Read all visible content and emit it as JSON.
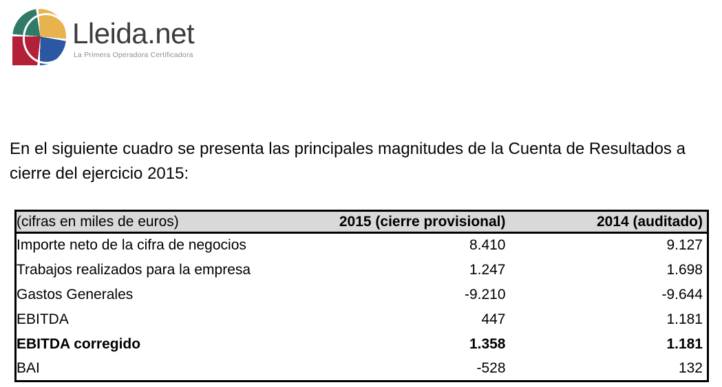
{
  "logo": {
    "name": "Lleida.net",
    "tagline": "La Primera Operadora Certificadora",
    "colors": {
      "quadrant_teal": "#2F7A68",
      "quadrant_yellow": "#E7B34C",
      "quadrant_red": "#B32038",
      "quadrant_blue": "#2B57A3",
      "name_text": "#3C3C3B",
      "tagline_text": "#8F8F8F"
    }
  },
  "intro_paragraph": "En el siguiente cuadro se presenta las principales magnitudes de la Cuenta de Resultados a cierre del ejercicio 2015:",
  "table": {
    "header_bg": "#D9D9D9",
    "header": [
      "(cifras en miles de euros)",
      "2015 (cierre provisional)",
      "2014 (auditado)"
    ],
    "rows": [
      {
        "label": "Importe neto de la cifra de negocios",
        "y2015": "8.410",
        "y2014": "9.127",
        "bold": false
      },
      {
        "label": "Trabajos realizados para la empresa",
        "y2015": "1.247",
        "y2014": "1.698",
        "bold": false
      },
      {
        "label": "Gastos Generales",
        "y2015": "-9.210",
        "y2014": "-9.644",
        "bold": false
      },
      {
        "label": "EBITDA",
        "y2015": "447",
        "y2014": "1.181",
        "bold": false
      },
      {
        "label": "EBITDA corregido",
        "y2015": "1.358",
        "y2014": "1.181",
        "bold": true
      },
      {
        "label": "BAI",
        "y2015": "-528",
        "y2014": "132",
        "bold": false
      }
    ]
  }
}
